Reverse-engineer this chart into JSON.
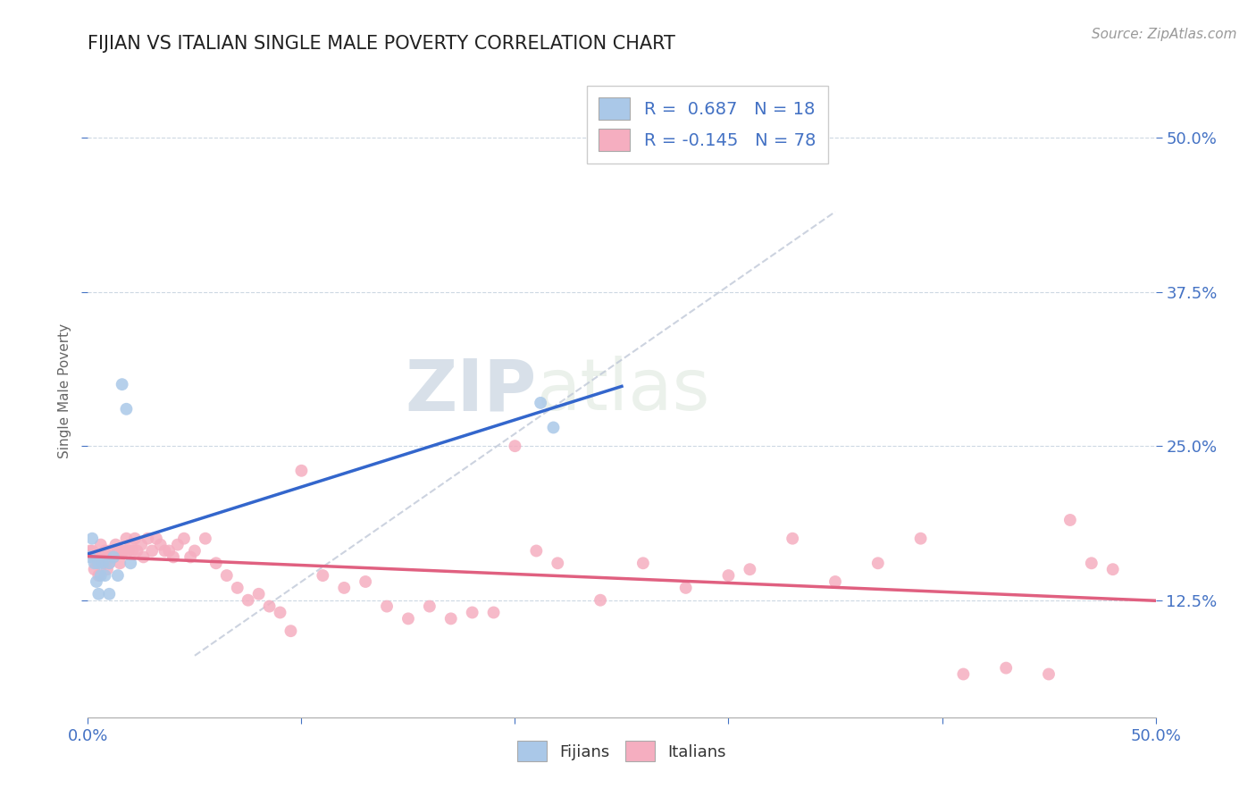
{
  "title": "FIJIAN VS ITALIAN SINGLE MALE POVERTY CORRELATION CHART",
  "source": "Source: ZipAtlas.com",
  "ylabel": "Single Male Poverty",
  "ytick_values": [
    0.125,
    0.25,
    0.375,
    0.5
  ],
  "xlim": [
    0.0,
    0.5
  ],
  "ylim": [
    0.03,
    0.56
  ],
  "legend_r_fijian": "R =  0.687",
  "legend_n_fijian": "N = 18",
  "legend_r_italian": "R = -0.145",
  "legend_n_italian": "N = 78",
  "fijian_color": "#aac8e8",
  "italian_color": "#f5aec0",
  "fijian_line_color": "#3366cc",
  "italian_line_color": "#e06080",
  "diag_line_color": "#c0c8d8",
  "background_color": "#ffffff",
  "grid_color": "#c8d4e0",
  "tick_label_color": "#4472c4",
  "fijians_x": [
    0.001,
    0.002,
    0.003,
    0.004,
    0.005,
    0.005,
    0.006,
    0.007,
    0.008,
    0.01,
    0.01,
    0.012,
    0.014,
    0.016,
    0.018,
    0.02,
    0.212,
    0.218
  ],
  "fijians_y": [
    0.16,
    0.175,
    0.155,
    0.14,
    0.155,
    0.13,
    0.145,
    0.155,
    0.145,
    0.155,
    0.13,
    0.16,
    0.145,
    0.3,
    0.28,
    0.155,
    0.285,
    0.265
  ],
  "italians_x": [
    0.001,
    0.002,
    0.003,
    0.003,
    0.004,
    0.004,
    0.005,
    0.005,
    0.006,
    0.007,
    0.008,
    0.008,
    0.009,
    0.01,
    0.01,
    0.011,
    0.012,
    0.013,
    0.014,
    0.015,
    0.016,
    0.017,
    0.018,
    0.019,
    0.02,
    0.021,
    0.022,
    0.023,
    0.025,
    0.026,
    0.028,
    0.03,
    0.032,
    0.034,
    0.036,
    0.038,
    0.04,
    0.042,
    0.045,
    0.048,
    0.05,
    0.055,
    0.06,
    0.065,
    0.07,
    0.075,
    0.08,
    0.085,
    0.09,
    0.095,
    0.1,
    0.11,
    0.12,
    0.13,
    0.14,
    0.15,
    0.16,
    0.17,
    0.18,
    0.19,
    0.2,
    0.21,
    0.22,
    0.24,
    0.26,
    0.28,
    0.3,
    0.31,
    0.33,
    0.35,
    0.37,
    0.39,
    0.41,
    0.43,
    0.45,
    0.46,
    0.47,
    0.48
  ],
  "italians_y": [
    0.165,
    0.165,
    0.16,
    0.15,
    0.16,
    0.155,
    0.16,
    0.145,
    0.17,
    0.16,
    0.155,
    0.165,
    0.15,
    0.165,
    0.155,
    0.16,
    0.16,
    0.17,
    0.165,
    0.155,
    0.165,
    0.165,
    0.175,
    0.165,
    0.17,
    0.165,
    0.175,
    0.165,
    0.17,
    0.16,
    0.175,
    0.165,
    0.175,
    0.17,
    0.165,
    0.165,
    0.16,
    0.17,
    0.175,
    0.16,
    0.165,
    0.175,
    0.155,
    0.145,
    0.135,
    0.125,
    0.13,
    0.12,
    0.115,
    0.1,
    0.23,
    0.145,
    0.135,
    0.14,
    0.12,
    0.11,
    0.12,
    0.11,
    0.115,
    0.115,
    0.25,
    0.165,
    0.155,
    0.125,
    0.155,
    0.135,
    0.145,
    0.15,
    0.175,
    0.14,
    0.155,
    0.175,
    0.065,
    0.07,
    0.065,
    0.19,
    0.155,
    0.15
  ],
  "watermark_zip": "ZIP",
  "watermark_atlas": "atlas",
  "marker_size": 100
}
